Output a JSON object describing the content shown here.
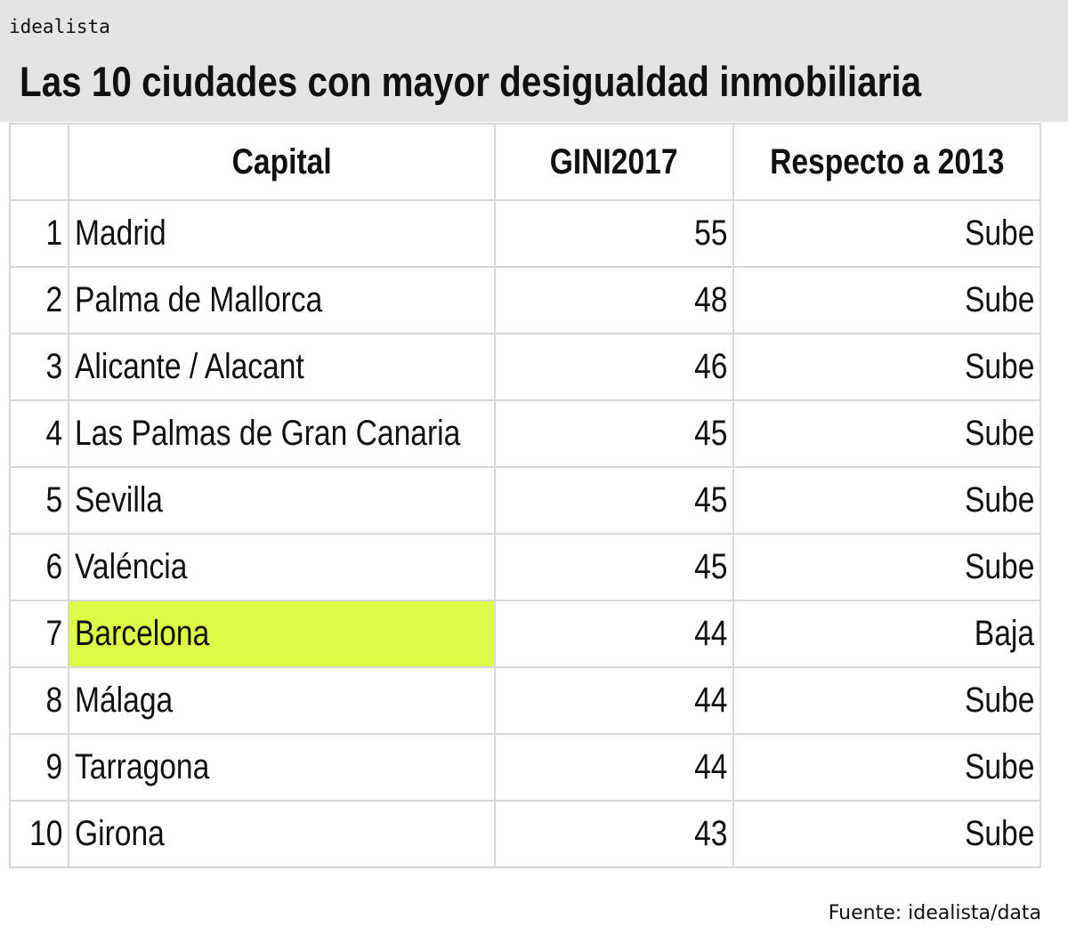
{
  "brand": "idealista",
  "title": "Las 10 ciudades con mayor desigualdad inmobiliaria",
  "source": "Fuente: idealista/data",
  "highlight_color": "#ddfb45",
  "header_bg": "#e4e4e4",
  "columns": [
    "",
    "Capital",
    "GINI2017",
    "Respecto a 2013"
  ],
  "rows": [
    {
      "rank": "1",
      "capital": "Madrid",
      "gini": "55",
      "trend": "Sube"
    },
    {
      "rank": "2",
      "capital": "Palma de Mallorca",
      "gini": "48",
      "trend": "Sube"
    },
    {
      "rank": "3",
      "capital": "Alicante / Alacant",
      "gini": "46",
      "trend": "Sube"
    },
    {
      "rank": "4",
      "capital": "Las Palmas de Gran Canaria",
      "gini": "45",
      "trend": "Sube"
    },
    {
      "rank": "5",
      "capital": "Sevilla",
      "gini": "45",
      "trend": "Sube"
    },
    {
      "rank": "6",
      "capital": "Valéncia",
      "gini": "45",
      "trend": "Sube"
    },
    {
      "rank": "7",
      "capital": "Barcelona",
      "gini": "44",
      "trend": "Baja",
      "highlighted": true
    },
    {
      "rank": "8",
      "capital": "Málaga",
      "gini": "44",
      "trend": "Sube"
    },
    {
      "rank": "9",
      "capital": "Tarragona",
      "gini": "44",
      "trend": "Sube"
    },
    {
      "rank": "10",
      "capital": "Girona",
      "gini": "43",
      "trend": "Sube"
    }
  ],
  "chart_data": {
    "type": "table",
    "title": "Las 10 ciudades con mayor desigualdad inmobiliaria",
    "columns": [
      "",
      "Capital",
      "GINI2017",
      "Respecto a 2013"
    ],
    "rows": [
      [
        "1",
        "Madrid",
        55,
        "Sube"
      ],
      [
        "2",
        "Palma de Mallorca",
        48,
        "Sube"
      ],
      [
        "3",
        "Alicante / Alacant",
        46,
        "Sube"
      ],
      [
        "4",
        "Las Palmas de Gran Canaria",
        45,
        "Sube"
      ],
      [
        "5",
        "Sevilla",
        45,
        "Sube"
      ],
      [
        "6",
        "Valéncia",
        45,
        "Sube"
      ],
      [
        "7",
        "Barcelona",
        44,
        "Baja"
      ],
      [
        "8",
        "Málaga",
        44,
        "Sube"
      ],
      [
        "9",
        "Tarragona",
        44,
        "Sube"
      ],
      [
        "10",
        "Girona",
        43,
        "Sube"
      ]
    ],
    "highlighted_row": "Barcelona",
    "source": "Fuente: idealista/data"
  }
}
